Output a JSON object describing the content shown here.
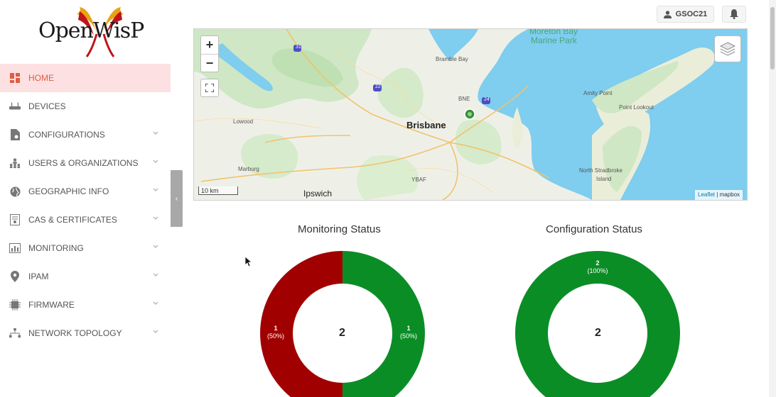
{
  "app": {
    "logo_text": "OpenWisP"
  },
  "sidebar": {
    "items": [
      {
        "label": "HOME",
        "icon": "home-grid-icon",
        "active": true
      },
      {
        "label": "DEVICES",
        "icon": "router-icon"
      },
      {
        "label": "CONFIGURATIONS",
        "icon": "config-file-icon"
      },
      {
        "label": "USERS & ORGANIZATIONS",
        "icon": "org-users-icon"
      },
      {
        "label": "GEOGRAPHIC INFO",
        "icon": "globe-icon"
      },
      {
        "label": "CAS & CERTIFICATES",
        "icon": "certificate-icon"
      },
      {
        "label": "MONITORING",
        "icon": "monitoring-chart-icon"
      },
      {
        "label": "IPAM",
        "icon": "location-pin-icon"
      },
      {
        "label": "FIRMWARE",
        "icon": "chip-icon"
      },
      {
        "label": "NETWORK TOPOLOGY",
        "icon": "topology-icon"
      }
    ],
    "collapse_glyph": "‹"
  },
  "header": {
    "username": "GSOC21"
  },
  "map": {
    "zoom_in": "+",
    "zoom_out": "−",
    "scale_label": "10 km",
    "attribution_leaflet": "Leaflet",
    "attribution_sep": " | ",
    "attribution_mapbox": "mapbox",
    "labels": {
      "brisbane": "Brisbane",
      "ipswich": "Ipswich",
      "lowood": "Lowood",
      "marburg": "Marburg",
      "bramble_bay": "Bramble Bay",
      "bne": "BNE",
      "ybaf": "YBAF",
      "amity_point": "Amity Point",
      "point_lookout": "Point Lookout",
      "north_stradbroke": "North Stradbroke",
      "island": "Island",
      "marine_park_top": "Moreton Bay",
      "marine_park": "Marine Park",
      "road_31": "31",
      "road_22": "22",
      "road_24": "24"
    }
  },
  "colors": {
    "ok": "#0b8d26",
    "problem": "#a10000",
    "accent": "#df5d43"
  },
  "charts": {
    "monitoring": {
      "title": "Monitoring Status",
      "total": "2",
      "right_count": "1",
      "right_pct": "(50%)",
      "left_count": "1",
      "left_pct": "(50%)"
    },
    "configuration": {
      "title": "Configuration Status",
      "total": "2",
      "top_count": "2",
      "top_pct": "(100%)"
    }
  },
  "chart_data": [
    {
      "type": "pie",
      "title": "Monitoring Status",
      "values": [
        1,
        1
      ],
      "colors": [
        "#0b8d26",
        "#a10000"
      ]
    },
    {
      "type": "pie",
      "title": "Configuration Status",
      "values": [
        2
      ],
      "colors": [
        "#0b8d26"
      ]
    }
  ]
}
